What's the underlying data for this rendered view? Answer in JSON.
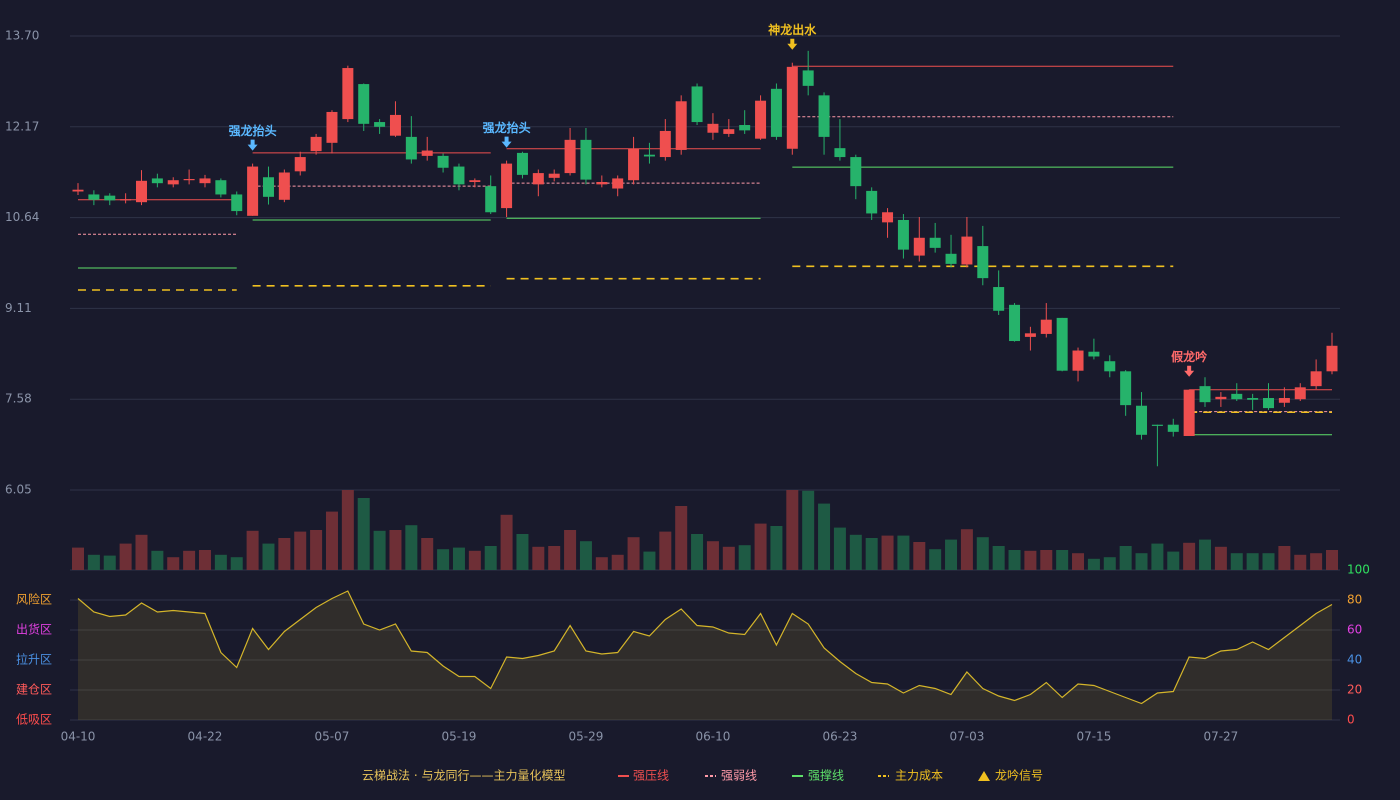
{
  "chart_data": {
    "type": "candlestick",
    "categories": [
      "04-10",
      null,
      null,
      null,
      null,
      null,
      null,
      null,
      "04-22",
      null,
      null,
      null,
      null,
      null,
      null,
      null,
      "05-07",
      null,
      null,
      null,
      null,
      null,
      null,
      null,
      "05-19",
      null,
      null,
      null,
      null,
      null,
      null,
      null,
      "05-29",
      null,
      null,
      null,
      null,
      null,
      null,
      null,
      "06-10",
      null,
      null,
      null,
      null,
      null,
      null,
      null,
      "06-23",
      null,
      null,
      null,
      null,
      null,
      null,
      null,
      "07-03",
      null,
      null,
      null,
      null,
      null,
      null,
      null,
      "07-15",
      null,
      null,
      null,
      null,
      null,
      null,
      null,
      "07-27",
      null,
      null,
      null,
      null,
      null,
      null,
      null
    ],
    "open": [
      11.08,
      11.03,
      11.01,
      10.93,
      10.9,
      11.3,
      11.2,
      11.27,
      11.22,
      11.27,
      11.03,
      10.67,
      11.32,
      10.94,
      11.42,
      11.76,
      11.9,
      12.3,
      12.89,
      12.25,
      12.02,
      12.0,
      11.68,
      11.68,
      11.5,
      11.24,
      11.17,
      10.8,
      11.73,
      11.2,
      11.31,
      11.39,
      11.95,
      11.2,
      11.13,
      11.27,
      11.7,
      11.66,
      11.78,
      12.85,
      12.07,
      12.05,
      12.2,
      11.97,
      12.81,
      11.8,
      13.12,
      12.7,
      11.81,
      11.66,
      11.09,
      10.56,
      10.6,
      10.0,
      10.3,
      10.03,
      9.85,
      10.16,
      9.47,
      9.17,
      8.63,
      8.68,
      8.95,
      8.06,
      8.38,
      8.22,
      8.05,
      7.47,
      7.15,
      7.15,
      6.96,
      7.8,
      7.58,
      7.67,
      7.6,
      7.6,
      7.52,
      7.58,
      7.8,
      8.05
    ],
    "close": [
      11.11,
      10.94,
      10.93,
      10.95,
      11.26,
      11.22,
      11.27,
      11.29,
      11.3,
      11.03,
      10.75,
      11.5,
      10.99,
      11.4,
      11.66,
      12.0,
      12.42,
      13.16,
      12.22,
      12.17,
      12.37,
      11.62,
      11.77,
      11.48,
      11.2,
      11.27,
      10.73,
      11.55,
      11.36,
      11.39,
      11.38,
      11.95,
      11.28,
      11.24,
      11.3,
      11.8,
      11.67,
      12.1,
      12.6,
      12.25,
      12.22,
      12.13,
      12.11,
      12.61,
      12.0,
      13.18,
      12.86,
      12.0,
      11.66,
      11.17,
      10.71,
      10.73,
      10.1,
      10.3,
      10.13,
      9.86,
      10.32,
      9.62,
      9.07,
      8.56,
      8.69,
      8.92,
      8.06,
      8.4,
      8.3,
      8.05,
      7.48,
      6.98,
      7.13,
      7.03,
      7.74,
      7.53,
      7.62,
      7.58,
      7.57,
      7.43,
      7.6,
      7.78,
      8.05,
      8.48
    ],
    "high": [
      11.22,
      11.1,
      11.05,
      11.05,
      11.44,
      11.38,
      11.32,
      11.45,
      11.36,
      11.3,
      11.08,
      11.55,
      11.5,
      11.45,
      11.75,
      12.05,
      12.45,
      13.2,
      12.9,
      12.3,
      12.6,
      12.35,
      12.0,
      11.72,
      11.55,
      11.3,
      11.35,
      11.6,
      11.75,
      11.45,
      11.45,
      12.15,
      12.15,
      11.35,
      11.35,
      12.0,
      11.9,
      12.3,
      12.7,
      12.9,
      12.4,
      12.3,
      12.45,
      12.7,
      12.9,
      13.25,
      13.45,
      12.75,
      12.3,
      11.7,
      11.15,
      10.8,
      10.7,
      10.65,
      10.55,
      10.35,
      10.65,
      10.5,
      9.75,
      9.2,
      8.8,
      9.2,
      8.95,
      8.45,
      8.6,
      8.32,
      8.07,
      7.7,
      7.15,
      7.25,
      7.74,
      7.95,
      7.7,
      7.85,
      7.67,
      7.85,
      7.78,
      7.85,
      8.25,
      8.7
    ],
    "low": [
      11.02,
      10.85,
      10.85,
      10.88,
      10.85,
      11.15,
      11.15,
      11.2,
      11.15,
      10.98,
      10.68,
      10.67,
      10.86,
      10.9,
      11.35,
      11.7,
      11.72,
      12.25,
      12.1,
      12.05,
      12.0,
      11.55,
      11.6,
      11.4,
      11.1,
      11.15,
      10.7,
      10.65,
      11.3,
      11.0,
      11.25,
      11.35,
      11.2,
      11.15,
      11.0,
      11.2,
      11.55,
      11.6,
      11.7,
      12.2,
      11.95,
      12.0,
      12.05,
      11.95,
      11.95,
      11.7,
      12.7,
      11.7,
      11.6,
      10.95,
      10.6,
      10.3,
      9.95,
      9.9,
      10.05,
      9.8,
      9.8,
      9.5,
      9.0,
      8.55,
      8.4,
      8.62,
      8.05,
      7.88,
      8.25,
      7.95,
      7.3,
      6.9,
      6.45,
      6.95,
      6.96,
      7.45,
      7.45,
      7.55,
      7.4,
      7.4,
      7.45,
      7.55,
      7.75,
      8.0
    ],
    "volume": [
      28,
      19,
      18,
      33,
      44,
      24,
      16,
      24,
      25,
      19,
      16,
      49,
      33,
      40,
      48,
      50,
      73,
      100,
      90,
      49,
      50,
      56,
      40,
      26,
      28,
      24,
      30,
      69,
      45,
      29,
      30,
      50,
      36,
      16,
      19,
      41,
      23,
      48,
      80,
      45,
      36,
      29,
      31,
      58,
      55,
      100,
      99,
      83,
      53,
      44,
      40,
      43,
      43,
      35,
      26,
      38,
      51,
      41,
      30,
      25,
      24,
      25,
      25,
      21,
      14,
      16,
      30,
      21,
      33,
      23,
      34,
      38,
      29,
      21,
      21,
      21,
      30,
      19,
      21,
      25
    ],
    "oscillator": [
      81,
      72,
      69,
      70,
      78,
      72,
      73,
      72,
      71,
      45,
      35,
      61,
      47,
      59,
      67,
      75,
      81,
      86,
      64,
      60,
      64,
      46,
      45,
      36,
      29,
      29,
      21,
      42,
      41,
      43,
      46,
      63,
      46,
      44,
      45,
      59,
      56,
      67,
      74,
      63,
      62,
      58,
      57,
      71,
      50,
      71,
      64,
      48,
      39,
      31,
      25,
      24,
      18,
      23,
      21,
      17,
      32,
      21,
      16,
      13,
      17,
      25,
      15,
      24,
      23,
      19,
      15,
      11,
      18,
      19,
      42,
      41,
      46,
      47,
      52,
      47,
      55,
      63,
      71,
      77
    ],
    "up_color": "#ef4f4f",
    "down_color": "#26b36b",
    "volume_up_color": "#6e2f36",
    "volume_down_color": "#1e5a44",
    "ylim": [
      6.05,
      13.7
    ],
    "yticks": [
      {
        "value": 13.7,
        "label": "13.70"
      },
      12.17,
      10.64,
      9.11,
      7.58,
      6.05
    ],
    "vlim": [
      0,
      100
    ],
    "olim": [
      0,
      100
    ],
    "oticks": [
      0,
      20,
      40,
      60,
      80,
      100
    ],
    "otick_colors": [
      "#ff4d4d",
      "#ff5a5a",
      "#4a90e2",
      "#e040e0",
      "#f0a030",
      "#30e060"
    ],
    "oscillator_color": "#d4b52a",
    "zones": [
      {
        "label": "风险区",
        "value": 80,
        "color": "#f0a030"
      },
      {
        "label": "出货区",
        "value": 60,
        "color": "#e040e0"
      },
      {
        "label": "拉升区",
        "value": 40,
        "color": "#4a90e2"
      },
      {
        "label": "建仓区",
        "value": 20,
        "color": "#ff5a5a"
      },
      {
        "label": "低吸区",
        "value": 0,
        "color": "#ff4d4d"
      }
    ],
    "legend_title": "云梯战法 · 与龙同行——主力量化模型",
    "levels": [
      {
        "name": "强压线",
        "color": "#ef4f4f",
        "dashed": false,
        "segments": [
          {
            "from": 0,
            "to": 10,
            "value": 10.94
          },
          {
            "from": 11,
            "to": 26,
            "value": 11.73
          },
          {
            "from": 27,
            "to": 43,
            "value": 11.8
          },
          {
            "from": 45,
            "to": 69,
            "value": 13.19
          },
          {
            "from": 70,
            "to": 79,
            "value": 7.74
          }
        ]
      },
      {
        "name": "强弱线",
        "color": "#ff9aa8",
        "dashed": true,
        "segments": [
          {
            "from": 0,
            "to": 10,
            "value": 10.36
          },
          {
            "from": 11,
            "to": 26,
            "value": 11.17
          },
          {
            "from": 27,
            "to": 43,
            "value": 11.22
          },
          {
            "from": 45,
            "to": 69,
            "value": 12.34
          },
          {
            "from": 70,
            "to": 79,
            "value": 7.37
          }
        ]
      },
      {
        "name": "强撑线",
        "color": "#5ee06a",
        "dashed": false,
        "segments": [
          {
            "from": 0,
            "to": 10,
            "value": 9.79
          },
          {
            "from": 11,
            "to": 26,
            "value": 10.6
          },
          {
            "from": 27,
            "to": 43,
            "value": 10.63
          },
          {
            "from": 45,
            "to": 69,
            "value": 11.49
          },
          {
            "from": 70,
            "to": 79,
            "value": 6.98
          }
        ]
      },
      {
        "name": "主力成本",
        "color": "#f0c020",
        "dashed": true,
        "segments": [
          {
            "from": 0,
            "to": 10,
            "value": 9.42
          },
          {
            "from": 11,
            "to": 26,
            "value": 9.49
          },
          {
            "from": 27,
            "to": 43,
            "value": 9.61
          },
          {
            "from": 45,
            "to": 69,
            "value": 9.82
          },
          {
            "from": 70,
            "to": 79,
            "value": 7.36
          }
        ]
      }
    ],
    "signal_legend": "龙吟信号",
    "signal_legend_color": "#f0c020",
    "signals": [
      {
        "label": "强龙抬头",
        "index": 11,
        "color": "#5ab8ff"
      },
      {
        "label": "强龙抬头",
        "index": 27,
        "color": "#5ab8ff"
      },
      {
        "label": "神龙出水",
        "index": 45,
        "color": "#f0c020"
      },
      {
        "label": "假龙吟",
        "index": 70,
        "color": "#ff6a6a"
      }
    ]
  }
}
